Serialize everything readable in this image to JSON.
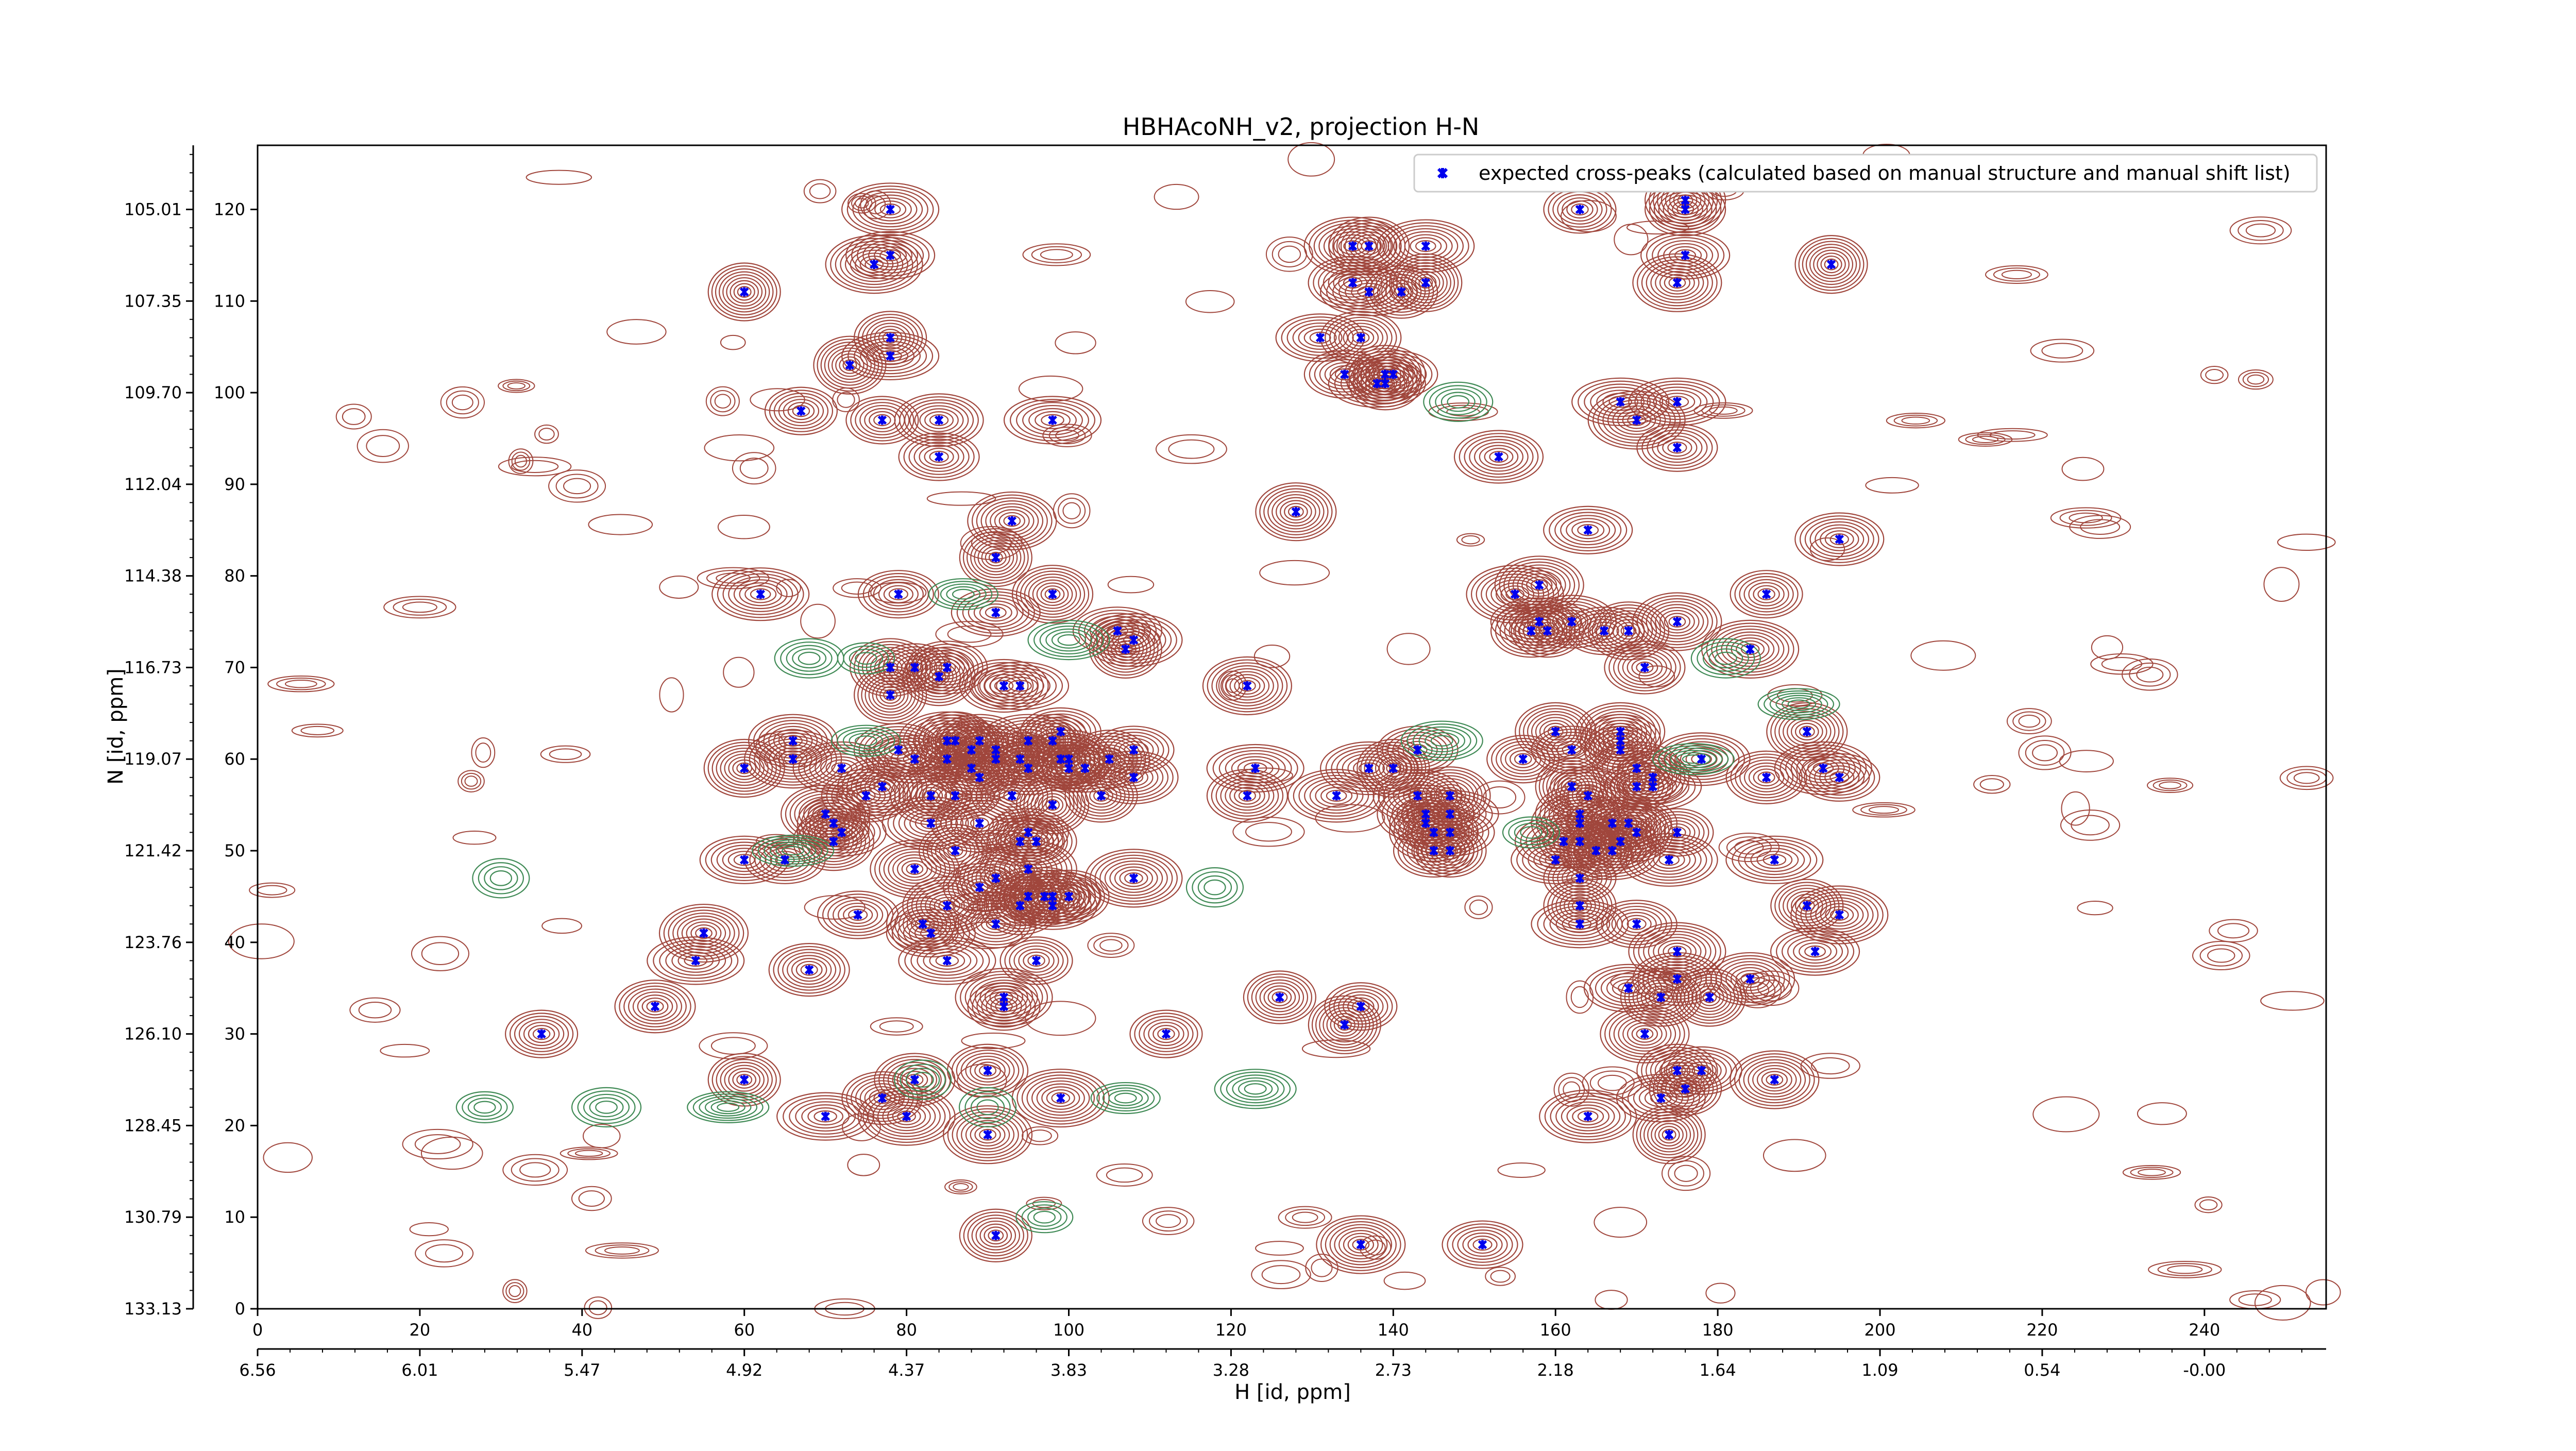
{
  "chart_data": {
    "type": "scatter",
    "title": "HBHAcoNH_v2, projection H-N",
    "xlabel": "H [id, ppm]",
    "ylabel": "N [id, ppm]",
    "xlim": [
      0,
      255
    ],
    "ylim": [
      0,
      127
    ],
    "x_ticks": [
      0,
      20,
      40,
      60,
      80,
      100,
      120,
      140,
      160,
      180,
      200,
      220,
      240
    ],
    "y_ticks": [
      0,
      10,
      20,
      30,
      40,
      50,
      60,
      70,
      80,
      90,
      100,
      110,
      120
    ],
    "x_ppm_tick_labels": [
      "6.56",
      "6.01",
      "5.47",
      "4.92",
      "4.37",
      "3.83",
      "3.28",
      "2.73",
      "2.18",
      "1.64",
      "1.09",
      "0.54",
      "-0.00"
    ],
    "y_ppm_tick_labels": [
      "133.13",
      "130.79",
      "128.45",
      "126.10",
      "123.76",
      "121.42",
      "119.07",
      "116.73",
      "114.38",
      "112.04",
      "109.70",
      "107.35",
      "105.01"
    ],
    "legend_position": "top-right",
    "grid": false,
    "colors": {
      "positive_contour": "#a0463c",
      "negative_contour": "#3f8a55",
      "peak_marker": "#0000ee"
    },
    "series": [
      {
        "name": "expected cross-peaks (calculated based on manual structure and manual shift list)",
        "points": [
          [
            35,
            30
          ],
          [
            49,
            33
          ],
          [
            55,
            41
          ],
          [
            54,
            38
          ],
          [
            60,
            25
          ],
          [
            60,
            59
          ],
          [
            60,
            49
          ],
          [
            62,
            78
          ],
          [
            60,
            111
          ],
          [
            65,
            49
          ],
          [
            66,
            62
          ],
          [
            66,
            60
          ],
          [
            67,
            98
          ],
          [
            68,
            37
          ],
          [
            70,
            54
          ],
          [
            70,
            21
          ],
          [
            71,
            53
          ],
          [
            71,
            51
          ],
          [
            72,
            52
          ],
          [
            72,
            59
          ],
          [
            73,
            103
          ],
          [
            74,
            43
          ],
          [
            75,
            56
          ],
          [
            76,
            114
          ],
          [
            77,
            97
          ],
          [
            77,
            23
          ],
          [
            77,
            57
          ],
          [
            78,
            104
          ],
          [
            78,
            106
          ],
          [
            78,
            70
          ],
          [
            78,
            115
          ],
          [
            78,
            120
          ],
          [
            78,
            67
          ],
          [
            79,
            78
          ],
          [
            79,
            61
          ],
          [
            80,
            21
          ],
          [
            81,
            70
          ],
          [
            81,
            25
          ],
          [
            81,
            48
          ],
          [
            81,
            60
          ],
          [
            82,
            42
          ],
          [
            83,
            56
          ],
          [
            83,
            41
          ],
          [
            83,
            53
          ],
          [
            84,
            69
          ],
          [
            84,
            93
          ],
          [
            84,
            97
          ],
          [
            85,
            62
          ],
          [
            85,
            60
          ],
          [
            85,
            70
          ],
          [
            85,
            44
          ],
          [
            85,
            38
          ],
          [
            86,
            50
          ],
          [
            86,
            62
          ],
          [
            86,
            56
          ],
          [
            88,
            59
          ],
          [
            88,
            61
          ],
          [
            89,
            58
          ],
          [
            89,
            62
          ],
          [
            89,
            53
          ],
          [
            89,
            46
          ],
          [
            90,
            26
          ],
          [
            90,
            19
          ],
          [
            91,
            61
          ],
          [
            91,
            8
          ],
          [
            91,
            47
          ],
          [
            91,
            76
          ],
          [
            91,
            60
          ],
          [
            91,
            82
          ],
          [
            91,
            42
          ],
          [
            92,
            68
          ],
          [
            92,
            34
          ],
          [
            92,
            33
          ],
          [
            93,
            56
          ],
          [
            93,
            86
          ],
          [
            94,
            68
          ],
          [
            94,
            60
          ],
          [
            94,
            44
          ],
          [
            94,
            51
          ],
          [
            95,
            62
          ],
          [
            95,
            45
          ],
          [
            95,
            52
          ],
          [
            95,
            59
          ],
          [
            95,
            48
          ],
          [
            96,
            38
          ],
          [
            96,
            51
          ],
          [
            97,
            45
          ],
          [
            98,
            97
          ],
          [
            98,
            62
          ],
          [
            98,
            78
          ],
          [
            98,
            44
          ],
          [
            98,
            45
          ],
          [
            98,
            55
          ],
          [
            99,
            63
          ],
          [
            99,
            60
          ],
          [
            99,
            23
          ],
          [
            100,
            59
          ],
          [
            100,
            45
          ],
          [
            100,
            60
          ],
          [
            102,
            59
          ],
          [
            104,
            56
          ],
          [
            105,
            60
          ],
          [
            106,
            74
          ],
          [
            108,
            73
          ],
          [
            107,
            72
          ],
          [
            108,
            61
          ],
          [
            108,
            58
          ],
          [
            108,
            47
          ],
          [
            112,
            30
          ],
          [
            122,
            56
          ],
          [
            122,
            68
          ],
          [
            123,
            59
          ],
          [
            126,
            34
          ],
          [
            128,
            87
          ],
          [
            131,
            106
          ],
          [
            133,
            56
          ],
          [
            134,
            31
          ],
          [
            134,
            102
          ],
          [
            135,
            112
          ],
          [
            135,
            116
          ],
          [
            136,
            33
          ],
          [
            136,
            106
          ],
          [
            136,
            7
          ],
          [
            138,
            101
          ],
          [
            139,
            101
          ],
          [
            139,
            102
          ],
          [
            140,
            102
          ],
          [
            137,
            59
          ],
          [
            140,
            59
          ],
          [
            143,
            61
          ],
          [
            143,
            56
          ],
          [
            144,
            54
          ],
          [
            144,
            53
          ],
          [
            145,
            50
          ],
          [
            145,
            52
          ],
          [
            147,
            54
          ],
          [
            147,
            50
          ],
          [
            147,
            56
          ],
          [
            147,
            52
          ],
          [
            144,
            116
          ],
          [
            144,
            112
          ],
          [
            151,
            7
          ],
          [
            153,
            93
          ],
          [
            155,
            78
          ],
          [
            156,
            60
          ],
          [
            157,
            74
          ],
          [
            158,
            79
          ],
          [
            158,
            75
          ],
          [
            159,
            74
          ],
          [
            160,
            63
          ],
          [
            160,
            49
          ],
          [
            161,
            51
          ],
          [
            162,
            57
          ],
          [
            162,
            61
          ],
          [
            162,
            75
          ],
          [
            163,
            53
          ],
          [
            163,
            47
          ],
          [
            163,
            51
          ],
          [
            163,
            54
          ],
          [
            163,
            42
          ],
          [
            163,
            44
          ],
          [
            164,
            56
          ],
          [
            164,
            85
          ],
          [
            164,
            21
          ],
          [
            165,
            50
          ],
          [
            166,
            74
          ],
          [
            167,
            53
          ],
          [
            167,
            50
          ],
          [
            168,
            61
          ],
          [
            168,
            62
          ],
          [
            168,
            63
          ],
          [
            168,
            99
          ],
          [
            168,
            51
          ],
          [
            169,
            74
          ],
          [
            169,
            35
          ],
          [
            169,
            53
          ],
          [
            170,
            52
          ],
          [
            170,
            42
          ],
          [
            170,
            59
          ],
          [
            170,
            97
          ],
          [
            170,
            57
          ],
          [
            171,
            70
          ],
          [
            171,
            30
          ],
          [
            172,
            57
          ],
          [
            172,
            58
          ],
          [
            173,
            34
          ],
          [
            173,
            23
          ],
          [
            174,
            49
          ],
          [
            174,
            19
          ],
          [
            175,
            94
          ],
          [
            175,
            36
          ],
          [
            175,
            39
          ],
          [
            175,
            52
          ],
          [
            175,
            26
          ],
          [
            175,
            75
          ],
          [
            175,
            99
          ],
          [
            176,
            24
          ],
          [
            176,
            121
          ],
          [
            176,
            115
          ],
          [
            178,
            60
          ],
          [
            179,
            34
          ],
          [
            178,
            26
          ],
          [
            184,
            36
          ],
          [
            184,
            72
          ],
          [
            186,
            78
          ],
          [
            186,
            58
          ],
          [
            187,
            25
          ],
          [
            187,
            49
          ],
          [
            191,
            44
          ],
          [
            191,
            63
          ],
          [
            192,
            39
          ],
          [
            193,
            59
          ],
          [
            194,
            114
          ],
          [
            195,
            58
          ],
          [
            195,
            84
          ],
          [
            195,
            43
          ],
          [
            163,
            120
          ],
          [
            176,
            120
          ],
          [
            175,
            112
          ],
          [
            137,
            111
          ],
          [
            141,
            111
          ],
          [
            137,
            116
          ]
        ]
      }
    ]
  }
}
